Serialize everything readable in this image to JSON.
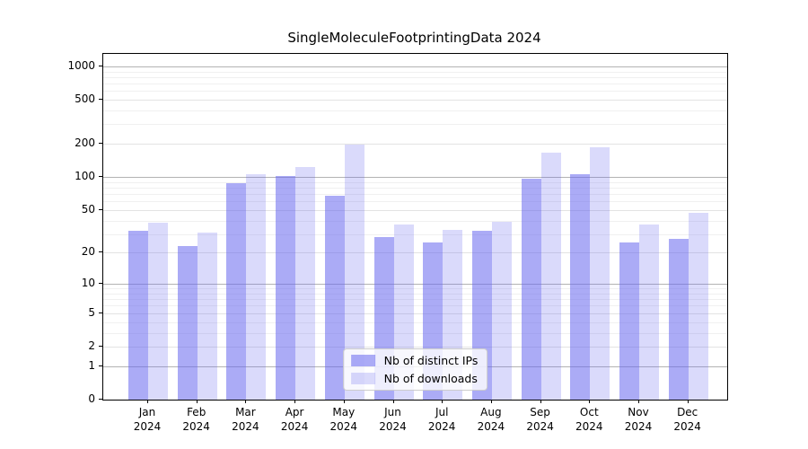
{
  "title": "SingleMoleculeFootprintingData 2024",
  "chart_data": {
    "type": "bar",
    "title": "SingleMoleculeFootprintingData 2024",
    "xlabel": "",
    "ylabel": "",
    "year": "2024",
    "categories": [
      "Jan",
      "Feb",
      "Mar",
      "Apr",
      "May",
      "Jun",
      "Jul",
      "Aug",
      "Sep",
      "Oct",
      "Nov",
      "Dec"
    ],
    "series": [
      {
        "name": "Nb of distinct IPs",
        "color": "rgba(102,102,238,0.55)",
        "values": [
          32,
          23,
          87,
          103,
          68,
          28,
          25,
          32,
          97,
          106,
          25,
          27
        ]
      },
      {
        "name": "Nb of downloads",
        "color": "rgba(102,102,238,0.24)",
        "values": [
          38,
          31,
          105,
          122,
          197,
          37,
          33,
          39,
          167,
          185,
          37,
          47
        ]
      }
    ],
    "y_scale": "log10(1+x)",
    "y_ticks": [
      0,
      1,
      2,
      5,
      10,
      20,
      50,
      100,
      200,
      500,
      1000
    ],
    "y_decade_ticks": [
      1,
      10,
      100,
      1000
    ],
    "y_axis_top_value": 1295,
    "grid": true,
    "legend_position": "lower center",
    "colors": {
      "grid_major": "#b3b3b3",
      "grid_minor": "#f0f0f0",
      "spine": "#000000",
      "background": "#ffffff"
    }
  }
}
